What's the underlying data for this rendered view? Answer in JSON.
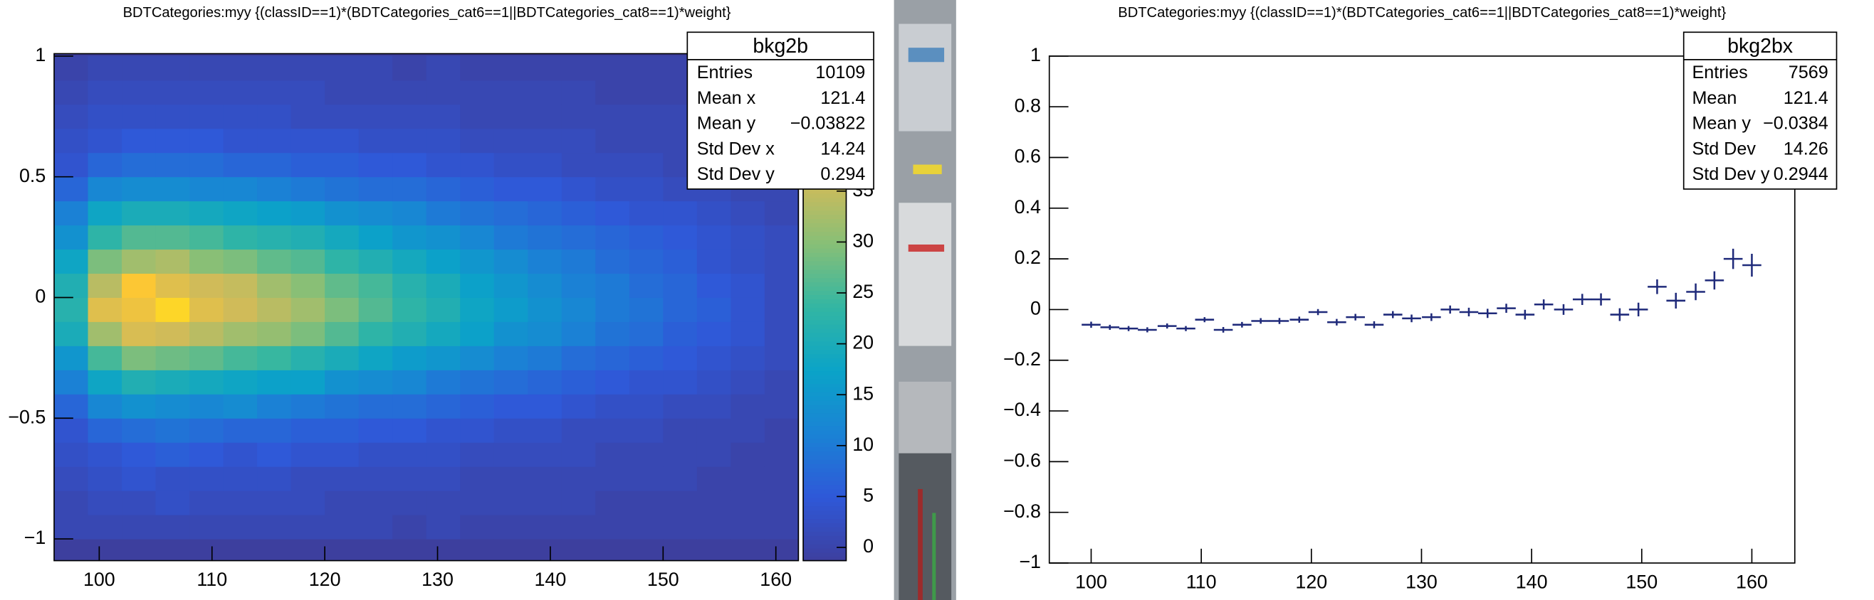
{
  "chart_data": [
    {
      "type": "heatmap",
      "title": "BDTCategories:myy {(classID==1)*(BDTCategories_cat6==1||BDTCategories_cat8==1)*weight}",
      "xbins": [
        96,
        99,
        102,
        105,
        108,
        111,
        114,
        117,
        120,
        123,
        126,
        129,
        132,
        135,
        138,
        141,
        144,
        147,
        150,
        153,
        156,
        159,
        162
      ],
      "ybins": [
        -1.0,
        -0.9,
        -0.8,
        -0.7,
        -0.6,
        -0.5,
        -0.4,
        -0.3,
        -0.2,
        -0.1,
        0.0,
        0.1,
        0.2,
        0.3,
        0.4,
        0.5,
        0.6,
        0.7,
        0.8,
        0.9,
        1.0
      ],
      "values": [
        [
          1,
          1,
          1,
          1,
          1,
          1,
          1,
          1,
          1,
          1,
          0,
          1,
          0,
          0,
          0,
          0,
          0,
          0,
          0,
          0,
          0,
          0
        ],
        [
          1,
          2,
          2,
          3,
          2,
          2,
          2,
          2,
          1,
          1,
          1,
          1,
          1,
          1,
          1,
          1,
          0,
          0,
          0,
          0,
          0,
          0
        ],
        [
          2,
          3,
          4,
          3,
          3,
          3,
          3,
          2,
          2,
          2,
          2,
          2,
          1,
          1,
          1,
          1,
          1,
          1,
          1,
          0,
          0,
          0
        ],
        [
          3,
          4,
          5,
          6,
          5,
          4,
          5,
          4,
          4,
          3,
          3,
          3,
          2,
          2,
          2,
          2,
          1,
          1,
          1,
          1,
          0,
          0
        ],
        [
          4,
          7,
          8,
          9,
          8,
          7,
          7,
          6,
          6,
          5,
          5,
          4,
          4,
          3,
          3,
          2,
          2,
          2,
          1,
          1,
          1,
          0
        ],
        [
          7,
          12,
          14,
          13,
          12,
          13,
          11,
          10,
          9,
          8,
          8,
          7,
          6,
          5,
          5,
          4,
          3,
          3,
          2,
          2,
          1,
          1
        ],
        [
          11,
          18,
          21,
          20,
          19,
          18,
          17,
          17,
          14,
          13,
          12,
          10,
          9,
          8,
          7,
          6,
          5,
          4,
          4,
          3,
          2,
          1
        ],
        [
          15,
          25,
          29,
          28,
          27,
          25,
          24,
          22,
          20,
          18,
          16,
          15,
          13,
          11,
          10,
          8,
          7,
          6,
          5,
          4,
          3,
          2
        ],
        [
          20,
          32,
          37,
          36,
          34,
          32,
          31,
          29,
          26,
          23,
          21,
          19,
          17,
          14,
          13,
          11,
          9,
          8,
          6,
          5,
          4,
          2
        ],
        [
          22,
          38,
          40,
          44,
          38,
          36,
          34,
          32,
          29,
          26,
          23,
          21,
          18,
          16,
          14,
          12,
          10,
          9,
          7,
          6,
          4,
          2
        ],
        [
          21,
          34,
          42,
          38,
          36,
          35,
          32,
          30,
          27,
          25,
          22,
          20,
          17,
          15,
          13,
          11,
          10,
          8,
          7,
          5,
          4,
          2
        ],
        [
          18,
          29,
          32,
          33,
          30,
          29,
          27,
          26,
          23,
          21,
          19,
          17,
          15,
          13,
          11,
          10,
          8,
          7,
          6,
          4,
          3,
          2
        ],
        [
          14,
          23,
          26,
          26,
          25,
          23,
          22,
          21,
          19,
          17,
          15,
          14,
          12,
          10,
          9,
          8,
          7,
          6,
          5,
          4,
          3,
          2
        ],
        [
          11,
          18,
          20,
          20,
          19,
          18,
          17,
          16,
          14,
          13,
          12,
          10,
          9,
          8,
          7,
          6,
          5,
          4,
          4,
          3,
          2,
          1
        ],
        [
          7,
          12,
          13,
          13,
          12,
          12,
          11,
          10,
          9,
          8,
          8,
          7,
          6,
          5,
          5,
          4,
          3,
          3,
          2,
          2,
          1,
          1
        ],
        [
          4,
          7,
          8,
          8,
          8,
          7,
          7,
          6,
          6,
          5,
          5,
          4,
          4,
          3,
          3,
          2,
          2,
          2,
          1,
          1,
          1,
          0
        ],
        [
          3,
          4,
          5,
          5,
          5,
          4,
          4,
          4,
          4,
          3,
          3,
          3,
          2,
          2,
          2,
          2,
          1,
          1,
          1,
          1,
          0,
          0
        ],
        [
          2,
          3,
          3,
          3,
          3,
          3,
          3,
          2,
          2,
          2,
          2,
          2,
          1,
          1,
          1,
          1,
          1,
          1,
          1,
          0,
          0,
          0
        ],
        [
          1,
          2,
          2,
          2,
          2,
          2,
          2,
          2,
          1,
          1,
          1,
          1,
          1,
          1,
          1,
          1,
          0,
          0,
          0,
          0,
          0,
          0
        ],
        [
          0,
          1,
          1,
          1,
          1,
          1,
          1,
          1,
          1,
          1,
          0,
          1,
          0,
          0,
          0,
          0,
          0,
          0,
          0,
          0,
          0,
          0
        ]
      ],
      "xlim": [
        96,
        162
      ],
      "xticks": [
        100,
        110,
        120,
        130,
        140,
        150,
        160
      ],
      "ylim": [
        -1.09,
        1.01
      ],
      "yticks": [
        {
          "value": -1,
          "label": "−1"
        },
        {
          "value": -0.5,
          "label": "−0.5"
        },
        0,
        0.5,
        1
      ],
      "zlim": [
        -1.3,
        48.5
      ],
      "zticks": [
        0,
        5,
        10,
        15,
        20,
        25,
        30,
        35
      ],
      "colorscale": [
        "#3d3f9e",
        "#2f58d8",
        "#1a82d5",
        "#0ba3c8",
        "#32b6a3",
        "#87bf77",
        "#d1bb59",
        "#fec832",
        "#f9fb0e"
      ],
      "stats": {
        "title": "bkg2b",
        "rows": [
          [
            "Entries",
            "10109"
          ],
          [
            "Mean x",
            "121.4"
          ],
          [
            "Mean y",
            "−0.03822"
          ],
          [
            "Std Dev x",
            "14.24"
          ],
          [
            "Std Dev y",
            "0.294"
          ]
        ]
      }
    },
    {
      "type": "errorbar",
      "title": "BDTCategories:myy {(classID==1)*(BDTCategories_cat6==1||BDTCategories_cat8==1)*weight}",
      "x": [
        100.0,
        101.7,
        103.4,
        105.1,
        106.9,
        108.6,
        110.3,
        112.0,
        113.7,
        115.4,
        117.1,
        118.9,
        120.6,
        122.3,
        124.0,
        125.7,
        127.4,
        129.1,
        130.9,
        132.6,
        134.3,
        136.0,
        137.7,
        139.4,
        141.1,
        142.9,
        144.6,
        146.3,
        148.0,
        149.7,
        151.4,
        153.1,
        154.9,
        156.6,
        158.3,
        160.0
      ],
      "values": [
        -0.06,
        -0.07,
        -0.075,
        -0.08,
        -0.065,
        -0.075,
        -0.04,
        -0.08,
        -0.06,
        -0.045,
        -0.045,
        -0.04,
        -0.01,
        -0.05,
        -0.03,
        -0.06,
        -0.02,
        -0.035,
        -0.03,
        0.0,
        -0.01,
        -0.015,
        0.005,
        -0.02,
        0.02,
        0.0,
        0.04,
        0.04,
        -0.02,
        0.0,
        0.09,
        0.035,
        0.07,
        0.115,
        0.2,
        0.175
      ],
      "errors": [
        0.012,
        0.01,
        0.01,
        0.01,
        0.01,
        0.01,
        0.01,
        0.011,
        0.011,
        0.011,
        0.012,
        0.012,
        0.012,
        0.013,
        0.013,
        0.014,
        0.014,
        0.015,
        0.015,
        0.016,
        0.017,
        0.018,
        0.018,
        0.019,
        0.02,
        0.021,
        0.022,
        0.024,
        0.025,
        0.027,
        0.029,
        0.031,
        0.033,
        0.036,
        0.04,
        0.045
      ],
      "xerr": 0.86,
      "color": "#1f2a7a",
      "xlim": [
        96.2,
        163.9
      ],
      "xticks": [
        100,
        110,
        120,
        130,
        140,
        150,
        160
      ],
      "ylim": [
        -1,
        1
      ],
      "yticks": [
        {
          "value": -1,
          "label": "−1"
        },
        {
          "value": -0.8,
          "label": "−0.8"
        },
        {
          "value": -0.6,
          "label": "−0.6"
        },
        {
          "value": -0.4,
          "label": "−0.4"
        },
        {
          "value": -0.2,
          "label": "−0.2"
        },
        0,
        0.2,
        0.4,
        0.6,
        0.8,
        1
      ],
      "stats": {
        "title": "bkg2bx",
        "rows": [
          [
            "Entries",
            "7569"
          ],
          [
            "Mean",
            "121.4"
          ],
          [
            "Mean y",
            "−0.0384"
          ],
          [
            "Std Dev",
            "14.26"
          ],
          [
            "Std Dev y",
            "0.2944"
          ]
        ]
      }
    }
  ]
}
